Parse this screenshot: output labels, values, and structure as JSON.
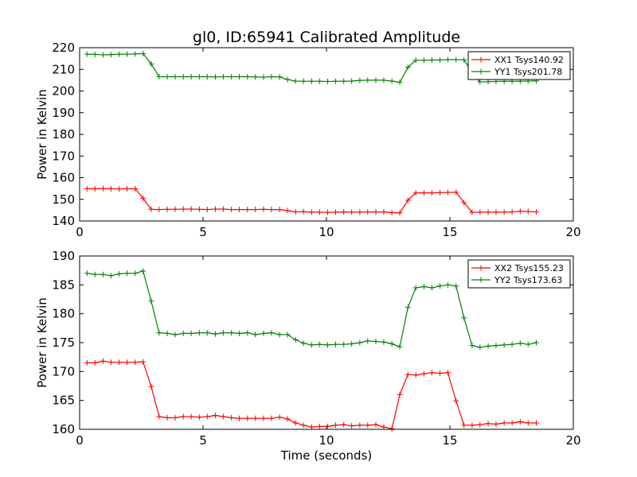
{
  "title": "gl0, ID:65941 Calibrated Amplitude",
  "xlabel": "Time (seconds)",
  "chart_data": [
    {
      "type": "line",
      "title": "gl0, ID:65941 Calibrated Amplitude",
      "xlabel": "",
      "ylabel": "Power in Kelvin",
      "xlim": [
        0,
        20
      ],
      "ylim": [
        140,
        220
      ],
      "xticks": [
        0,
        5,
        10,
        15,
        20
      ],
      "yticks": [
        140,
        150,
        160,
        170,
        180,
        190,
        200,
        210,
        220
      ],
      "grid": false,
      "legend_position": "upper-right",
      "x": [
        0.3,
        0.62,
        0.95,
        1.27,
        1.6,
        1.92,
        2.25,
        2.57,
        2.9,
        3.22,
        3.55,
        3.87,
        4.2,
        4.52,
        4.85,
        5.17,
        5.5,
        5.82,
        6.15,
        6.47,
        6.8,
        7.12,
        7.45,
        7.77,
        8.1,
        8.42,
        8.75,
        9.07,
        9.4,
        9.72,
        10.05,
        10.37,
        10.7,
        11.02,
        11.35,
        11.67,
        12.0,
        12.32,
        12.65,
        12.97,
        13.3,
        13.62,
        13.95,
        14.27,
        14.6,
        14.92,
        15.25,
        15.57,
        15.9,
        16.22,
        16.55,
        16.87,
        17.2,
        17.52,
        17.85,
        18.17,
        18.5
      ],
      "series": [
        {
          "name": "XX1 Tsys140.92",
          "color": "#ff0000",
          "values": [
            154.9,
            154.9,
            155.0,
            154.9,
            154.8,
            154.9,
            154.9,
            150.5,
            145.4,
            145.3,
            145.4,
            145.4,
            145.5,
            145.5,
            145.4,
            145.3,
            145.5,
            145.5,
            145.3,
            145.3,
            145.3,
            145.3,
            145.4,
            145.3,
            145.3,
            144.8,
            144.2,
            144.3,
            144.1,
            144.1,
            144.0,
            144.1,
            144.2,
            144.1,
            144.1,
            144.2,
            144.2,
            144.2,
            143.9,
            143.7,
            149.6,
            153.0,
            153.0,
            153.0,
            153.1,
            153.2,
            153.3,
            148.5,
            144.0,
            144.1,
            144.1,
            144.1,
            144.1,
            144.2,
            144.5,
            144.4,
            144.2
          ]
        },
        {
          "name": "YY1 Tsys201.78",
          "color": "#008000",
          "values": [
            217.0,
            216.9,
            216.7,
            216.8,
            217.0,
            217.0,
            217.1,
            217.3,
            212.5,
            206.6,
            206.6,
            206.6,
            206.6,
            206.6,
            206.6,
            206.6,
            206.5,
            206.6,
            206.6,
            206.6,
            206.6,
            206.5,
            206.4,
            206.6,
            206.5,
            205.3,
            204.6,
            204.5,
            204.5,
            204.5,
            204.4,
            204.5,
            204.5,
            204.6,
            204.9,
            205.0,
            205.0,
            205.0,
            204.6,
            204.0,
            211.0,
            214.2,
            214.2,
            214.3,
            214.3,
            214.5,
            214.5,
            214.4,
            208.6,
            204.2,
            204.3,
            204.4,
            204.5,
            204.5,
            204.5,
            204.6,
            204.7
          ]
        }
      ]
    },
    {
      "type": "line",
      "title": "",
      "xlabel": "Time (seconds)",
      "ylabel": "Power in Kelvin",
      "xlim": [
        0,
        20
      ],
      "ylim": [
        160,
        190
      ],
      "xticks": [
        0,
        5,
        10,
        15,
        20
      ],
      "yticks": [
        160,
        165,
        170,
        175,
        180,
        185,
        190
      ],
      "grid": false,
      "legend_position": "upper-right",
      "x": [
        0.3,
        0.62,
        0.95,
        1.27,
        1.6,
        1.92,
        2.25,
        2.57,
        2.9,
        3.22,
        3.55,
        3.87,
        4.2,
        4.52,
        4.85,
        5.17,
        5.5,
        5.82,
        6.15,
        6.47,
        6.8,
        7.12,
        7.45,
        7.77,
        8.1,
        8.42,
        8.75,
        9.07,
        9.4,
        9.72,
        10.05,
        10.37,
        10.7,
        11.02,
        11.35,
        11.67,
        12.0,
        12.32,
        12.65,
        12.97,
        13.3,
        13.62,
        13.95,
        14.27,
        14.6,
        14.92,
        15.25,
        15.57,
        15.9,
        16.22,
        16.55,
        16.87,
        17.2,
        17.52,
        17.85,
        18.17,
        18.5
      ],
      "series": [
        {
          "name": "XX2 Tsys155.23",
          "color": "#ff0000",
          "values": [
            171.5,
            171.5,
            171.8,
            171.6,
            171.6,
            171.6,
            171.6,
            171.7,
            167.4,
            162.2,
            162.0,
            162.0,
            162.2,
            162.2,
            162.1,
            162.2,
            162.4,
            162.2,
            162.0,
            161.9,
            161.9,
            161.9,
            161.9,
            161.9,
            162.1,
            161.8,
            161.1,
            160.7,
            160.4,
            160.5,
            160.5,
            160.7,
            160.8,
            160.6,
            160.7,
            160.7,
            160.8,
            160.4,
            160.1,
            166.0,
            169.5,
            169.4,
            169.6,
            169.8,
            169.7,
            169.8,
            164.9,
            160.7,
            160.7,
            160.8,
            161.0,
            160.9,
            161.1,
            161.1,
            161.3,
            161.1,
            161.1
          ]
        },
        {
          "name": "YY2 Tsys173.63",
          "color": "#008000",
          "values": [
            187.0,
            186.8,
            186.8,
            186.6,
            186.9,
            187.0,
            187.0,
            187.4,
            182.2,
            176.7,
            176.6,
            176.4,
            176.6,
            176.6,
            176.7,
            176.7,
            176.5,
            176.7,
            176.7,
            176.6,
            176.7,
            176.4,
            176.6,
            176.7,
            176.4,
            176.4,
            175.5,
            174.9,
            174.6,
            174.7,
            174.6,
            174.7,
            174.7,
            174.8,
            175.0,
            175.3,
            175.2,
            175.1,
            174.8,
            174.3,
            181.1,
            184.5,
            184.7,
            184.5,
            184.8,
            185.0,
            184.8,
            179.3,
            174.5,
            174.2,
            174.4,
            174.5,
            174.6,
            174.7,
            174.9,
            174.7,
            175.0
          ]
        }
      ]
    }
  ]
}
